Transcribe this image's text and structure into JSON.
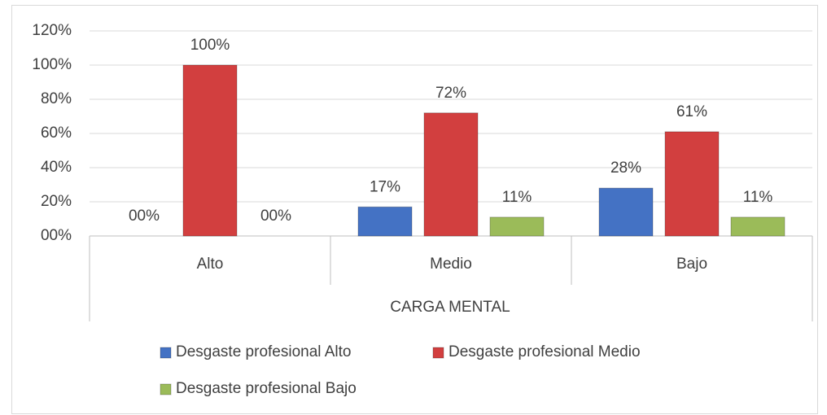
{
  "chart_data": {
    "type": "bar",
    "x_label": "CARGA MENTAL",
    "categories": [
      "Alto",
      "Medio",
      "Bajo"
    ],
    "series": [
      {
        "name": "Desgaste profesional Alto",
        "color": "#4472c4",
        "values": [
          0,
          17,
          28
        ],
        "value_labels": [
          "00%",
          "17%",
          "28%"
        ]
      },
      {
        "name": "Desgaste profesional Medio",
        "color": "#d23f3f",
        "values": [
          100,
          72,
          61
        ],
        "value_labels": [
          "100%",
          "72%",
          "61%"
        ]
      },
      {
        "name": "Desgaste profesional Bajo",
        "color": "#9bbb59",
        "values": [
          0,
          11,
          11
        ],
        "value_labels": [
          "00%",
          "11%",
          "11%"
        ]
      }
    ],
    "ylim": [
      0,
      120
    ],
    "yticks": [
      {
        "value": 0,
        "label": "00%"
      },
      {
        "value": 20,
        "label": "20%"
      },
      {
        "value": 40,
        "label": "40%"
      },
      {
        "value": 60,
        "label": "60%"
      },
      {
        "value": 80,
        "label": "80%"
      },
      {
        "value": 100,
        "label": "100%"
      },
      {
        "value": 120,
        "label": "120%"
      }
    ],
    "grid": true,
    "legend": "bottom"
  }
}
